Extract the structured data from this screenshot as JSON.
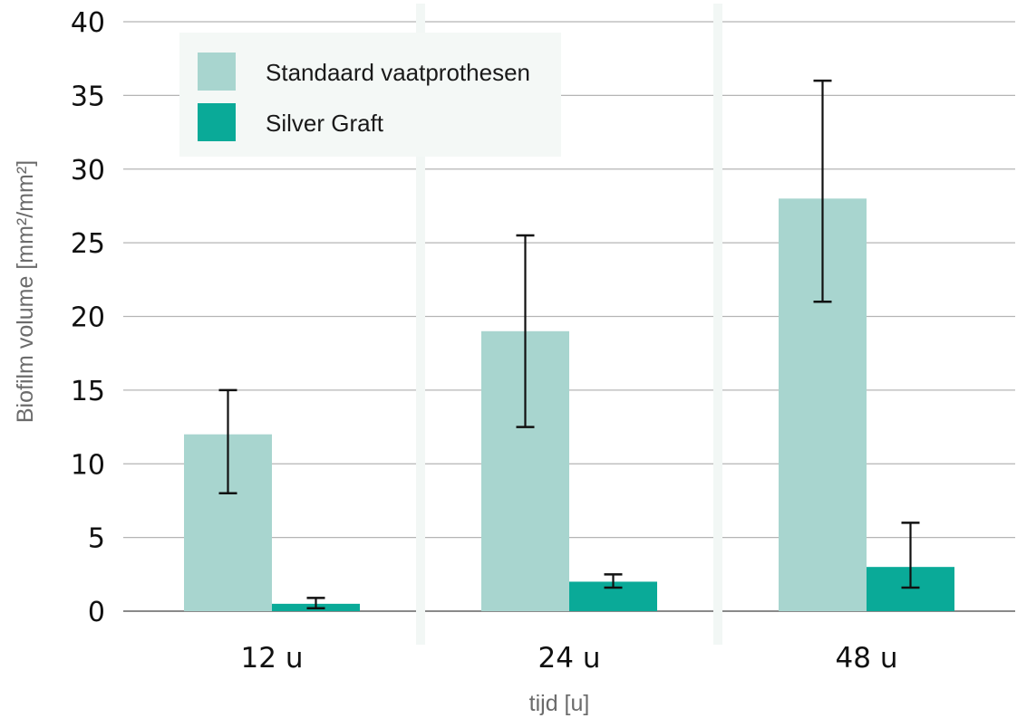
{
  "chart_data": {
    "type": "bar",
    "categories": [
      "12 u",
      "24 u",
      "48 u"
    ],
    "series": [
      {
        "name": "Standaard vaatprothesen",
        "color": "#a8d5cf",
        "values": [
          12,
          19,
          28
        ],
        "err_low": [
          8,
          12.5,
          21
        ],
        "err_high": [
          15,
          25.5,
          36
        ]
      },
      {
        "name": "Silver Graft",
        "color": "#0aaa98",
        "values": [
          0.5,
          2,
          3
        ],
        "err_low": [
          0.2,
          1.6,
          1.6
        ],
        "err_high": [
          0.9,
          2.5,
          6
        ]
      }
    ],
    "xlabel": "tijd [u]",
    "ylabel": "Biofilm volume [mm²/mm²]",
    "ylim": [
      0,
      40
    ],
    "yticks": [
      0,
      5,
      10,
      15,
      20,
      25,
      30,
      35,
      40
    ],
    "grid": true,
    "legend_position": "top-left"
  }
}
